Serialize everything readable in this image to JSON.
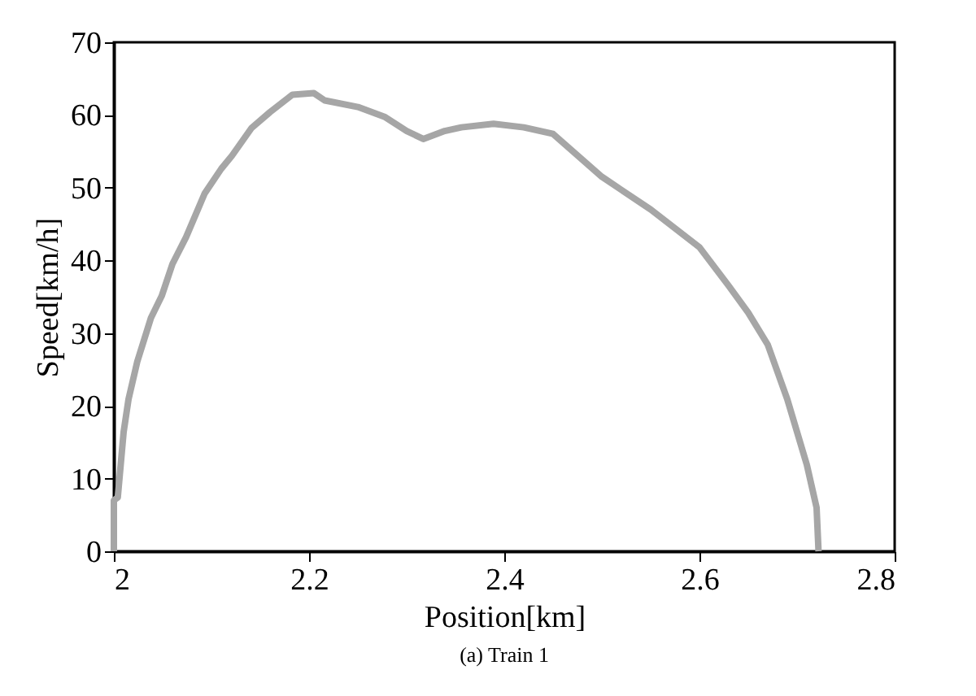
{
  "chart_data": {
    "type": "line",
    "xlabel": "Position[km]",
    "ylabel": "Speed[km/h]",
    "annotations": [
      "(a) Train 1"
    ],
    "x": [
      2.0,
      2.0,
      2.004,
      2.01,
      2.015,
      2.024,
      2.038,
      2.049,
      2.06,
      2.074,
      2.093,
      2.11,
      2.121,
      2.141,
      2.16,
      2.183,
      2.205,
      2.216,
      2.25,
      2.278,
      2.3,
      2.317,
      2.339,
      2.356,
      2.389,
      2.42,
      2.45,
      2.5,
      2.55,
      2.6,
      2.63,
      2.65,
      2.67,
      2.69,
      2.71,
      2.72,
      2.722
    ],
    "series": [
      {
        "color": "#a6a6a6",
        "values": [
          0,
          7,
          7.4,
          16.4,
          20.9,
          26.1,
          32.1,
          35.1,
          39.5,
          43.2,
          49.2,
          52.6,
          54.4,
          58.2,
          60.4,
          62.8,
          63,
          62,
          61.1,
          59.7,
          57.8,
          56.7,
          57.8,
          58.3,
          58.8,
          58.3,
          57.4,
          51.5,
          47,
          41.8,
          36.5,
          32.8,
          28.4,
          20.9,
          11.9,
          6,
          0
        ]
      }
    ],
    "xlim": [
      2,
      2.8
    ],
    "xticks": [
      2,
      2.2,
      2.4,
      2.6,
      2.8
    ],
    "ylim": [
      0,
      70
    ],
    "yticks": [
      0,
      10,
      20,
      30,
      40,
      50,
      60,
      70
    ],
    "grid": false,
    "legend": false,
    "marker": "none",
    "line_style": "solid"
  }
}
